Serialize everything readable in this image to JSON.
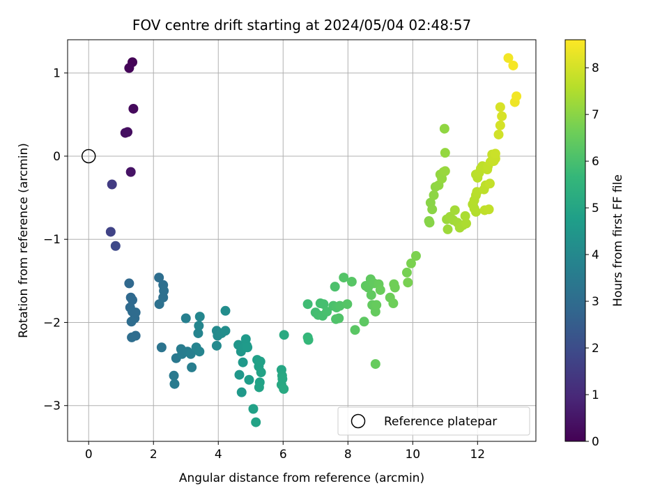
{
  "chart_data": {
    "type": "scatter",
    "title": "FOV centre drift starting at 2024/05/04 02:48:57",
    "xlabel": "Angular distance from reference (arcmin)",
    "ylabel": "Rotation from reference (arcmin)",
    "xlim": [
      -0.65,
      13.8
    ],
    "ylim": [
      -3.43,
      1.4
    ],
    "xticks": [
      0,
      2,
      4,
      6,
      8,
      10,
      12
    ],
    "yticks": [
      1,
      0,
      -1,
      -2,
      -3
    ],
    "ytick_labels": [
      "1",
      "0",
      "−1",
      "−2",
      "−3"
    ],
    "grid": true,
    "legend": {
      "location": "lower right",
      "entries": [
        "Reference platepar"
      ]
    },
    "reference_point": {
      "x": 0,
      "y": 0
    },
    "colorbar": {
      "label": "Hours from first FF file",
      "range": [
        0,
        8.6
      ],
      "ticks": [
        0,
        1,
        2,
        3,
        4,
        5,
        6,
        7,
        8
      ],
      "colormap": "viridis"
    },
    "points": [
      {
        "x": 1.35,
        "y": 1.13,
        "t": 0.05
      },
      {
        "x": 1.25,
        "y": 1.06,
        "t": 0.1
      },
      {
        "x": 1.38,
        "y": 0.57,
        "t": 0.2
      },
      {
        "x": 1.2,
        "y": 0.29,
        "t": 0.3
      },
      {
        "x": 1.13,
        "y": 0.28,
        "t": 0.35
      },
      {
        "x": 1.3,
        "y": -0.19,
        "t": 0.45
      },
      {
        "x": 0.72,
        "y": -0.34,
        "t": 1.5
      },
      {
        "x": 0.68,
        "y": -0.91,
        "t": 1.75
      },
      {
        "x": 0.83,
        "y": -1.08,
        "t": 1.9
      },
      {
        "x": 1.25,
        "y": -1.53,
        "t": 2.9
      },
      {
        "x": 1.3,
        "y": -1.7,
        "t": 2.92
      },
      {
        "x": 1.35,
        "y": -1.73,
        "t": 2.95
      },
      {
        "x": 1.28,
        "y": -1.82,
        "t": 2.98
      },
      {
        "x": 1.35,
        "y": -1.87,
        "t": 3.0
      },
      {
        "x": 1.45,
        "y": -1.88,
        "t": 3.0
      },
      {
        "x": 1.42,
        "y": -1.95,
        "t": 3.02
      },
      {
        "x": 1.32,
        "y": -1.99,
        "t": 3.05
      },
      {
        "x": 1.45,
        "y": -2.16,
        "t": 3.05
      },
      {
        "x": 1.33,
        "y": -2.18,
        "t": 3.07
      },
      {
        "x": 2.17,
        "y": -1.46,
        "t": 3.1
      },
      {
        "x": 2.3,
        "y": -1.55,
        "t": 3.12
      },
      {
        "x": 2.32,
        "y": -1.62,
        "t": 3.15
      },
      {
        "x": 2.3,
        "y": -1.7,
        "t": 3.17
      },
      {
        "x": 2.18,
        "y": -1.78,
        "t": 3.2
      },
      {
        "x": 2.25,
        "y": -2.3,
        "t": 3.3
      },
      {
        "x": 2.63,
        "y": -2.64,
        "t": 3.5
      },
      {
        "x": 2.65,
        "y": -2.74,
        "t": 3.55
      },
      {
        "x": 2.7,
        "y": -2.43,
        "t": 3.45
      },
      {
        "x": 2.85,
        "y": -2.32,
        "t": 3.6
      },
      {
        "x": 2.88,
        "y": -2.38,
        "t": 3.62
      },
      {
        "x": 3.0,
        "y": -1.95,
        "t": 3.7
      },
      {
        "x": 3.05,
        "y": -2.35,
        "t": 3.65
      },
      {
        "x": 3.15,
        "y": -2.38,
        "t": 3.7
      },
      {
        "x": 3.18,
        "y": -2.54,
        "t": 3.68
      },
      {
        "x": 3.32,
        "y": -2.3,
        "t": 3.85
      },
      {
        "x": 3.38,
        "y": -2.13,
        "t": 3.9
      },
      {
        "x": 3.4,
        "y": -2.04,
        "t": 3.92
      },
      {
        "x": 3.43,
        "y": -1.93,
        "t": 3.95
      },
      {
        "x": 3.42,
        "y": -2.35,
        "t": 3.88
      },
      {
        "x": 3.95,
        "y": -2.1,
        "t": 4.1
      },
      {
        "x": 3.98,
        "y": -2.16,
        "t": 4.12
      },
      {
        "x": 3.95,
        "y": -2.28,
        "t": 4.1
      },
      {
        "x": 4.1,
        "y": -2.13,
        "t": 4.15
      },
      {
        "x": 4.22,
        "y": -1.86,
        "t": 4.2
      },
      {
        "x": 4.22,
        "y": -2.1,
        "t": 4.22
      },
      {
        "x": 4.62,
        "y": -2.27,
        "t": 4.5
      },
      {
        "x": 4.65,
        "y": -2.63,
        "t": 4.55
      },
      {
        "x": 4.7,
        "y": -2.35,
        "t": 4.55
      },
      {
        "x": 4.72,
        "y": -2.84,
        "t": 4.6
      },
      {
        "x": 4.76,
        "y": -2.48,
        "t": 4.6
      },
      {
        "x": 4.8,
        "y": -2.3,
        "t": 4.6
      },
      {
        "x": 4.85,
        "y": -2.2,
        "t": 4.65
      },
      {
        "x": 4.88,
        "y": -2.28,
        "t": 4.65
      },
      {
        "x": 4.9,
        "y": -2.3,
        "t": 4.67
      },
      {
        "x": 4.95,
        "y": -2.69,
        "t": 4.75
      },
      {
        "x": 5.08,
        "y": -3.04,
        "t": 4.9
      },
      {
        "x": 5.16,
        "y": -3.2,
        "t": 4.95
      },
      {
        "x": 5.2,
        "y": -2.45,
        "t": 4.85
      },
      {
        "x": 5.25,
        "y": -2.53,
        "t": 4.88
      },
      {
        "x": 5.3,
        "y": -2.47,
        "t": 4.9
      },
      {
        "x": 5.28,
        "y": -2.72,
        "t": 4.92
      },
      {
        "x": 5.26,
        "y": -2.78,
        "t": 4.95
      },
      {
        "x": 5.32,
        "y": -2.6,
        "t": 4.93
      },
      {
        "x": 5.95,
        "y": -2.57,
        "t": 5.1
      },
      {
        "x": 5.97,
        "y": -2.64,
        "t": 5.12
      },
      {
        "x": 5.98,
        "y": -2.68,
        "t": 5.15
      },
      {
        "x": 5.95,
        "y": -2.75,
        "t": 5.17
      },
      {
        "x": 6.02,
        "y": -2.8,
        "t": 5.2
      },
      {
        "x": 6.03,
        "y": -2.15,
        "t": 5.25
      },
      {
        "x": 6.76,
        "y": -2.18,
        "t": 5.7
      },
      {
        "x": 6.78,
        "y": -2.21,
        "t": 5.72
      },
      {
        "x": 6.76,
        "y": -1.78,
        "t": 5.9
      },
      {
        "x": 7.0,
        "y": -1.88,
        "t": 5.95
      },
      {
        "x": 7.08,
        "y": -1.91,
        "t": 5.98
      },
      {
        "x": 7.15,
        "y": -1.77,
        "t": 6.0
      },
      {
        "x": 7.22,
        "y": -1.92,
        "t": 6.02
      },
      {
        "x": 7.25,
        "y": -1.78,
        "t": 6.02
      },
      {
        "x": 7.35,
        "y": -1.87,
        "t": 6.05
      },
      {
        "x": 7.55,
        "y": -1.8,
        "t": 6.1
      },
      {
        "x": 7.6,
        "y": -1.57,
        "t": 6.12
      },
      {
        "x": 7.65,
        "y": -1.82,
        "t": 6.15
      },
      {
        "x": 7.63,
        "y": -1.96,
        "t": 6.17
      },
      {
        "x": 7.72,
        "y": -1.95,
        "t": 6.2
      },
      {
        "x": 7.75,
        "y": -1.8,
        "t": 6.2
      },
      {
        "x": 7.87,
        "y": -1.46,
        "t": 6.25
      },
      {
        "x": 7.98,
        "y": -1.78,
        "t": 6.27
      },
      {
        "x": 8.12,
        "y": -1.51,
        "t": 6.3
      },
      {
        "x": 8.22,
        "y": -2.09,
        "t": 6.35
      },
      {
        "x": 8.5,
        "y": -1.99,
        "t": 6.4
      },
      {
        "x": 8.55,
        "y": -1.56,
        "t": 6.42
      },
      {
        "x": 8.62,
        "y": -1.58,
        "t": 6.45
      },
      {
        "x": 8.7,
        "y": -1.48,
        "t": 6.45
      },
      {
        "x": 8.72,
        "y": -1.67,
        "t": 6.47
      },
      {
        "x": 8.75,
        "y": -1.79,
        "t": 6.5
      },
      {
        "x": 8.8,
        "y": -1.53,
        "t": 6.5
      },
      {
        "x": 8.85,
        "y": -1.87,
        "t": 6.52
      },
      {
        "x": 8.88,
        "y": -1.79,
        "t": 6.55
      },
      {
        "x": 8.85,
        "y": -2.5,
        "t": 6.55
      },
      {
        "x": 8.95,
        "y": -1.54,
        "t": 6.57
      },
      {
        "x": 9.0,
        "y": -1.61,
        "t": 6.6
      },
      {
        "x": 9.3,
        "y": -1.7,
        "t": 6.65
      },
      {
        "x": 9.4,
        "y": -1.77,
        "t": 6.67
      },
      {
        "x": 9.42,
        "y": -1.54,
        "t": 6.7
      },
      {
        "x": 9.45,
        "y": -1.58,
        "t": 6.7
      },
      {
        "x": 9.82,
        "y": -1.4,
        "t": 6.8
      },
      {
        "x": 9.85,
        "y": -1.52,
        "t": 6.82
      },
      {
        "x": 9.95,
        "y": -1.29,
        "t": 6.85
      },
      {
        "x": 10.1,
        "y": -1.2,
        "t": 6.88
      },
      {
        "x": 10.5,
        "y": -0.78,
        "t": 7.0
      },
      {
        "x": 10.52,
        "y": -0.8,
        "t": 7.02
      },
      {
        "x": 10.55,
        "y": -0.56,
        "t": 7.05
      },
      {
        "x": 10.6,
        "y": -0.64,
        "t": 7.07
      },
      {
        "x": 10.65,
        "y": -0.47,
        "t": 7.1
      },
      {
        "x": 10.7,
        "y": -0.37,
        "t": 7.12
      },
      {
        "x": 10.8,
        "y": -0.35,
        "t": 7.15
      },
      {
        "x": 10.85,
        "y": -0.22,
        "t": 7.17
      },
      {
        "x": 10.9,
        "y": -0.27,
        "t": 7.2
      },
      {
        "x": 10.95,
        "y": -0.19,
        "t": 7.22
      },
      {
        "x": 11.0,
        "y": -0.18,
        "t": 7.25
      },
      {
        "x": 10.98,
        "y": 0.33,
        "t": 7.15
      },
      {
        "x": 11.0,
        "y": 0.04,
        "t": 7.2
      },
      {
        "x": 11.05,
        "y": -0.76,
        "t": 7.3
      },
      {
        "x": 11.08,
        "y": -0.88,
        "t": 7.32
      },
      {
        "x": 11.15,
        "y": -0.73,
        "t": 7.35
      },
      {
        "x": 11.25,
        "y": -0.77,
        "t": 7.37
      },
      {
        "x": 11.3,
        "y": -0.65,
        "t": 7.4
      },
      {
        "x": 11.38,
        "y": -0.8,
        "t": 7.42
      },
      {
        "x": 11.45,
        "y": -0.86,
        "t": 7.45
      },
      {
        "x": 11.55,
        "y": -0.83,
        "t": 7.47
      },
      {
        "x": 11.62,
        "y": -0.72,
        "t": 7.5
      },
      {
        "x": 11.65,
        "y": -0.81,
        "t": 7.52
      },
      {
        "x": 11.85,
        "y": -0.58,
        "t": 7.6
      },
      {
        "x": 11.9,
        "y": -0.63,
        "t": 7.62
      },
      {
        "x": 11.9,
        "y": -0.53,
        "t": 7.64
      },
      {
        "x": 11.95,
        "y": -0.47,
        "t": 7.66
      },
      {
        "x": 11.98,
        "y": -0.43,
        "t": 7.68
      },
      {
        "x": 11.95,
        "y": -0.67,
        "t": 7.6
      },
      {
        "x": 12.0,
        "y": -0.26,
        "t": 7.7
      },
      {
        "x": 11.95,
        "y": -0.22,
        "t": 7.7
      },
      {
        "x": 12.05,
        "y": -0.2,
        "t": 7.72
      },
      {
        "x": 12.1,
        "y": -0.15,
        "t": 7.74
      },
      {
        "x": 12.15,
        "y": -0.12,
        "t": 7.76
      },
      {
        "x": 12.2,
        "y": -0.4,
        "t": 7.75
      },
      {
        "x": 12.25,
        "y": -0.35,
        "t": 7.76
      },
      {
        "x": 12.22,
        "y": -0.65,
        "t": 7.78
      },
      {
        "x": 12.3,
        "y": -0.16,
        "t": 7.8
      },
      {
        "x": 12.32,
        "y": -0.12,
        "t": 7.82
      },
      {
        "x": 12.35,
        "y": -0.64,
        "t": 7.8
      },
      {
        "x": 12.38,
        "y": -0.33,
        "t": 7.83
      },
      {
        "x": 12.4,
        "y": -0.07,
        "t": 7.85
      },
      {
        "x": 12.45,
        "y": 0.02,
        "t": 7.87
      },
      {
        "x": 12.5,
        "y": -0.06,
        "t": 7.9
      },
      {
        "x": 12.55,
        "y": -0.03,
        "t": 7.9
      },
      {
        "x": 12.55,
        "y": 0.03,
        "t": 7.92
      },
      {
        "x": 12.65,
        "y": 0.26,
        "t": 8.0
      },
      {
        "x": 12.7,
        "y": 0.37,
        "t": 8.05
      },
      {
        "x": 12.75,
        "y": 0.48,
        "t": 8.1
      },
      {
        "x": 12.7,
        "y": 0.59,
        "t": 8.1
      },
      {
        "x": 12.95,
        "y": 1.18,
        "t": 8.45
      },
      {
        "x": 13.1,
        "y": 1.09,
        "t": 8.5
      },
      {
        "x": 13.15,
        "y": 0.65,
        "t": 8.4
      },
      {
        "x": 13.2,
        "y": 0.72,
        "t": 8.45
      }
    ]
  }
}
